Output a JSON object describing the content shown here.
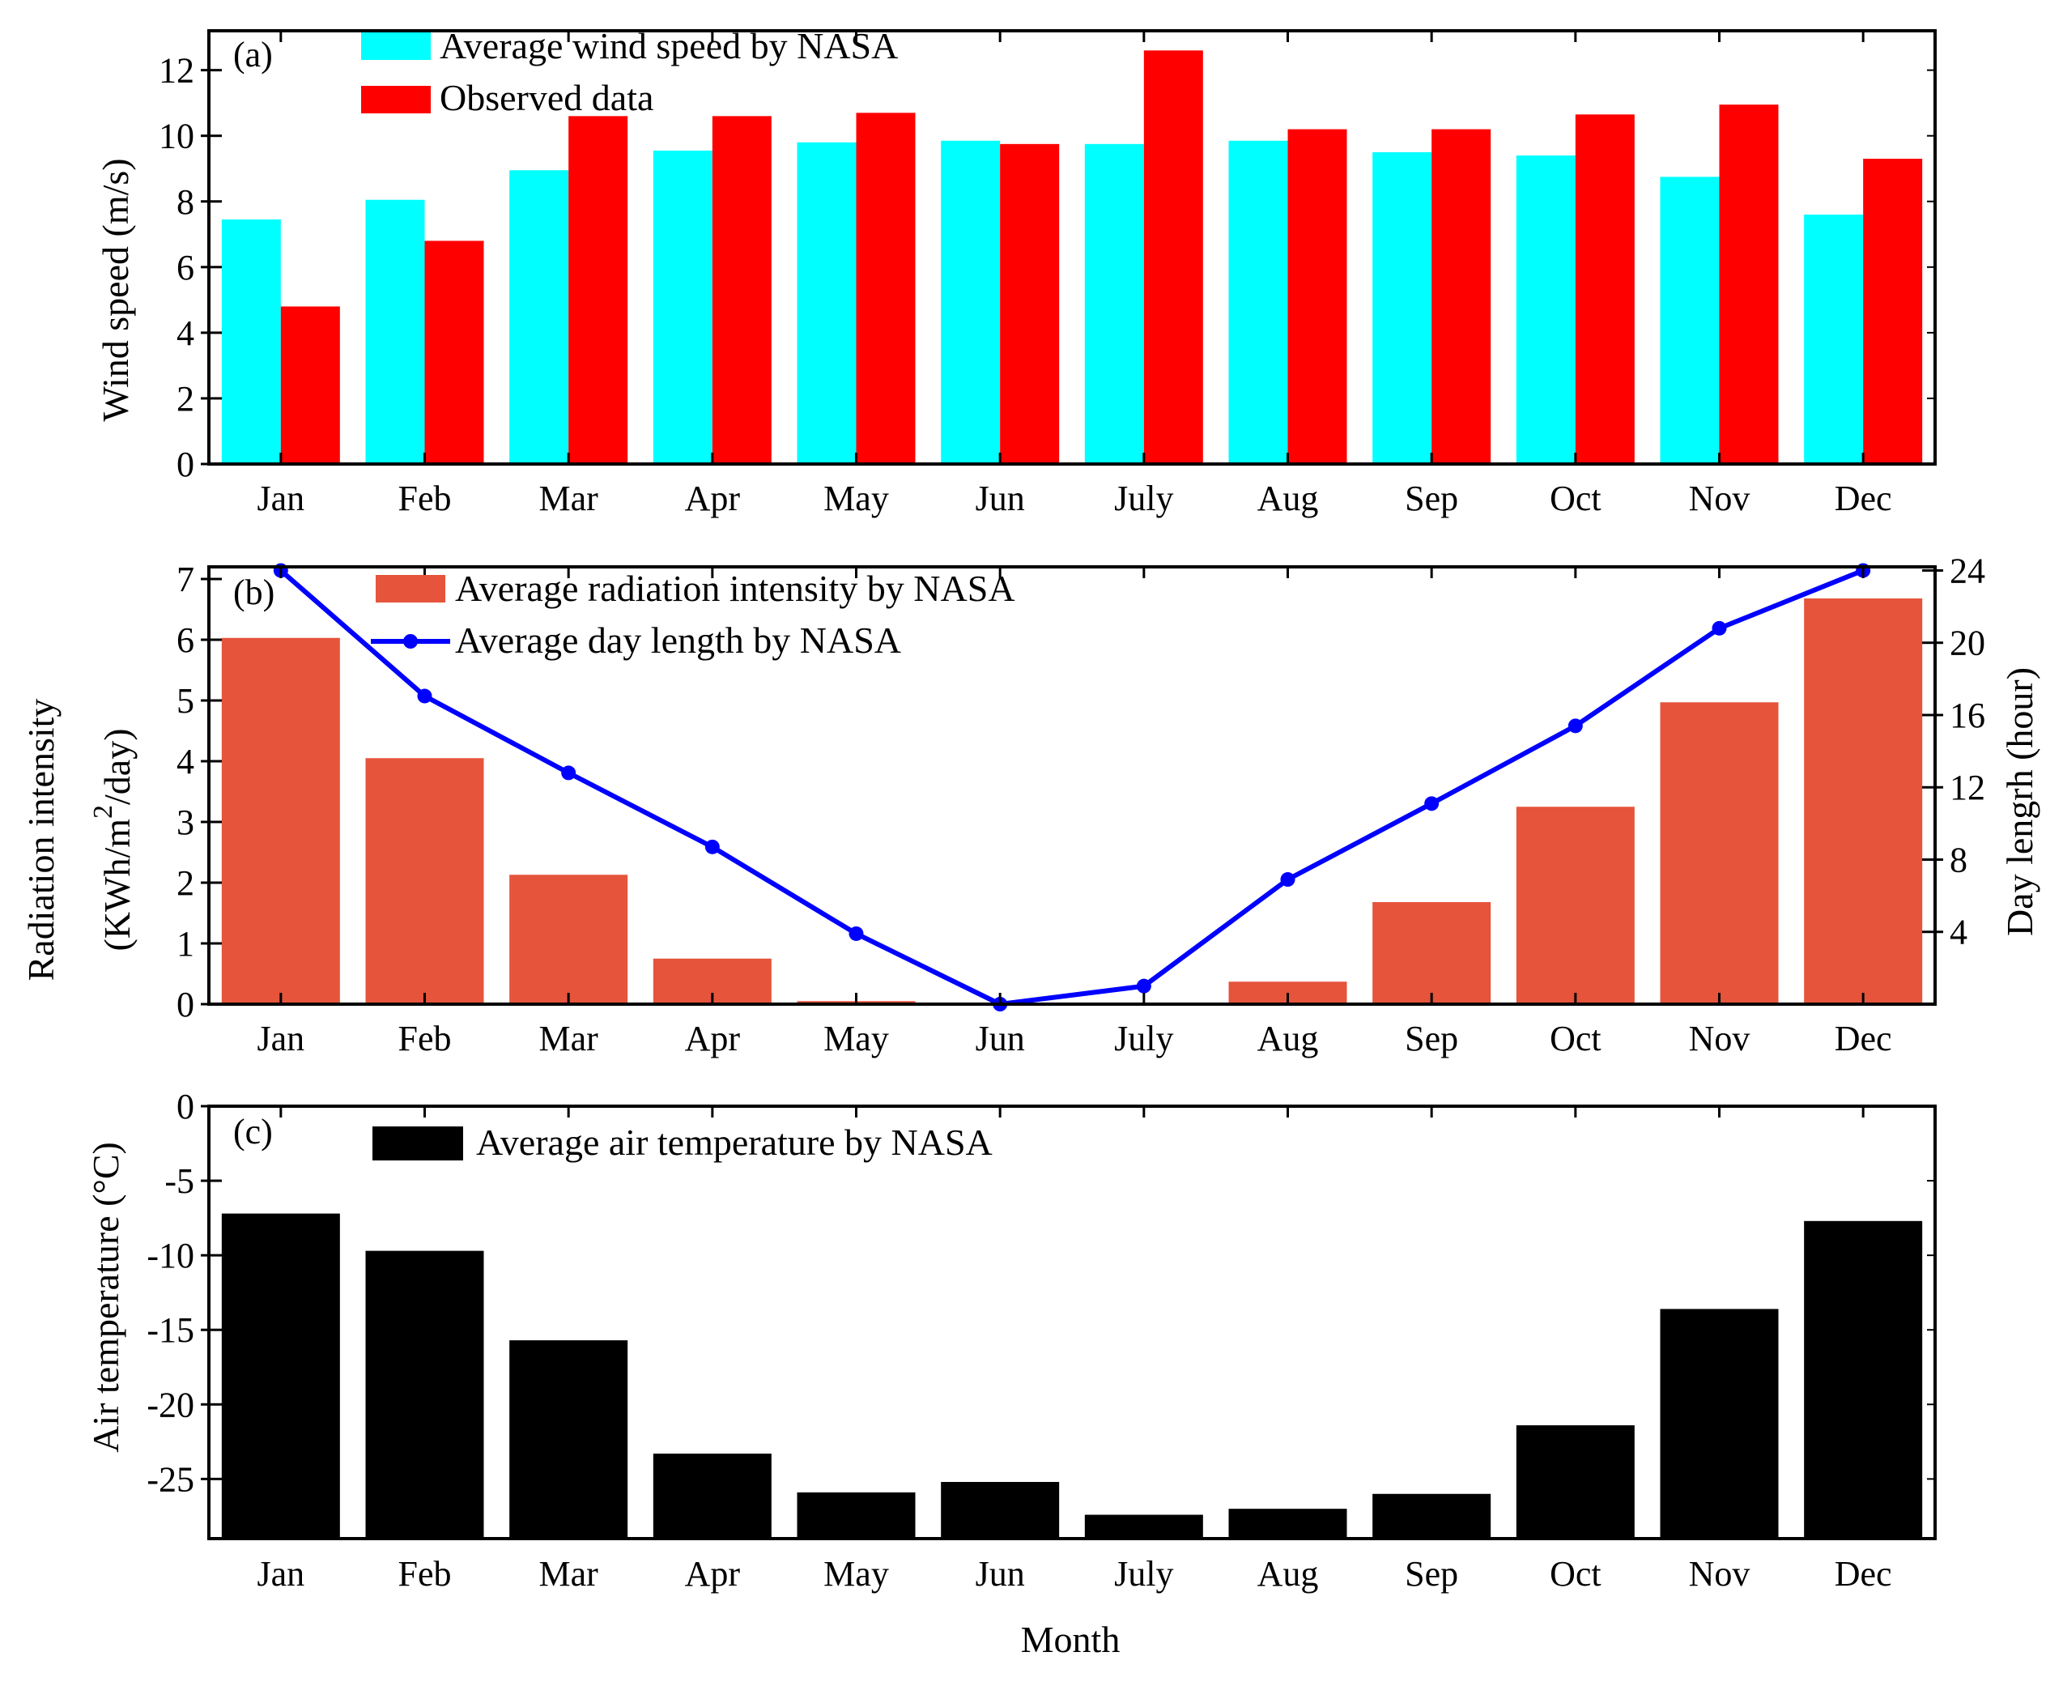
{
  "chart_data": [
    {
      "type": "bar",
      "panel_label": "(a)",
      "categories": [
        "Jan",
        "Feb",
        "Mar",
        "Apr",
        "May",
        "Jun",
        "July",
        "Aug",
        "Sep",
        "Oct",
        "Nov",
        "Dec"
      ],
      "ylabel": "Wind speed (m/s)",
      "ylim": [
        0,
        13.2
      ],
      "yticks": [
        0,
        2,
        4,
        6,
        8,
        10,
        12
      ],
      "legend_position": "top-left",
      "series": [
        {
          "name": "Average wind speed by NASA",
          "color": "#00FFFF",
          "values": [
            7.45,
            8.05,
            8.95,
            9.55,
            9.8,
            9.85,
            9.75,
            9.85,
            9.5,
            9.4,
            8.75,
            7.6
          ]
        },
        {
          "name": "Observed data",
          "color": "#FF0000",
          "values": [
            4.8,
            6.8,
            10.6,
            10.6,
            10.7,
            9.75,
            12.6,
            10.2,
            10.2,
            10.65,
            10.95,
            9.3
          ]
        }
      ]
    },
    {
      "type": "bar",
      "panel_label": "(b)",
      "categories": [
        "Jan",
        "Feb",
        "Mar",
        "Apr",
        "May",
        "Jun",
        "July",
        "Aug",
        "Sep",
        "Oct",
        "Nov",
        "Dec"
      ],
      "ylabel_line1": "Radiation intensity",
      "ylabel_line2_prefix": "(KWh/m",
      "ylabel_line2_sup": "2",
      "ylabel_line2_suffix": "/day)",
      "ylim": [
        0,
        7.2
      ],
      "yticks": [
        0,
        1,
        2,
        3,
        4,
        5,
        6,
        7
      ],
      "y2label": "Day lengrh (hour)",
      "y2lim": [
        0,
        24.2
      ],
      "y2ticks": [
        4,
        8,
        12,
        16,
        20,
        24
      ],
      "legend_position": "top-left",
      "series": [
        {
          "name": "Average radiation intensity by NASA",
          "type": "bar",
          "color": "#E5543B",
          "values": [
            6.03,
            4.05,
            2.13,
            0.75,
            0.05,
            0.0,
            0.0,
            0.37,
            1.68,
            3.25,
            4.97,
            6.68
          ]
        },
        {
          "name": "Average day length by NASA",
          "type": "line",
          "axis": "y2",
          "color": "#0000FF",
          "values": [
            24,
            17.05,
            12.8,
            8.7,
            3.9,
            0,
            1.0,
            6.9,
            11.1,
            15.4,
            20.8,
            24
          ]
        }
      ]
    },
    {
      "type": "bar",
      "panel_label": "(c)",
      "categories": [
        "Jan",
        "Feb",
        "Mar",
        "Apr",
        "May",
        "Jun",
        "July",
        "Aug",
        "Sep",
        "Oct",
        "Nov",
        "Dec"
      ],
      "ylabel": "Air temperature (°C)",
      "xlabel": "Month",
      "ylim": [
        -29,
        0
      ],
      "yticks": [
        0,
        -5,
        -10,
        -15,
        -20,
        -25
      ],
      "legend_position": "top-left",
      "series": [
        {
          "name": "Average air temperature by NASA",
          "color": "#000000",
          "values": [
            -7.2,
            -9.7,
            -15.7,
            -23.3,
            -25.9,
            -25.2,
            -27.4,
            -27.0,
            -26.0,
            -21.4,
            -13.6,
            -7.7
          ]
        }
      ]
    }
  ]
}
